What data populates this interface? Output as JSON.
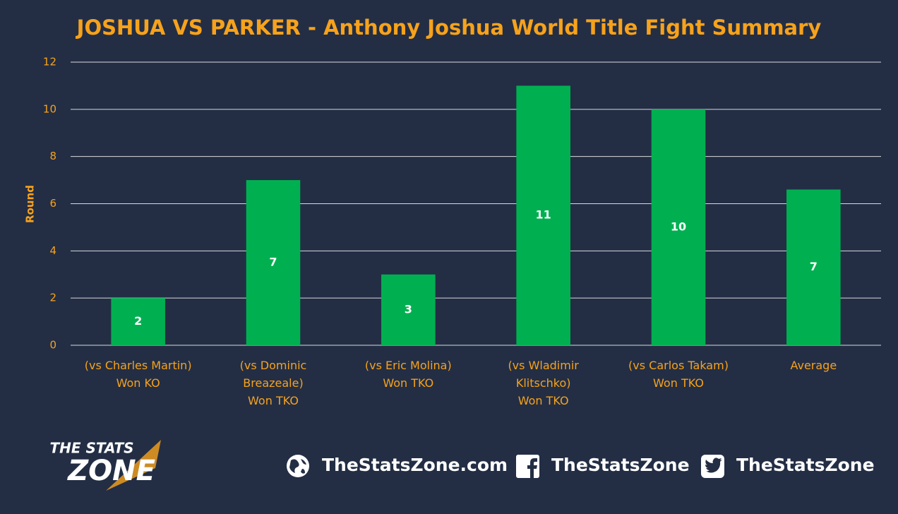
{
  "chart_data": {
    "type": "bar",
    "title": "JOSHUA VS PARKER - Anthony Joshua World Title Fight Summary",
    "y_label": "Round",
    "categories": [
      "(vs Charles Martin)\nWon KO",
      "(vs Dominic\nBreazeale)\nWon TKO",
      "(vs Eric Molina)\nWon TKO",
      "(vs Wladimir\nKlitschko)\nWon TKO",
      "(vs Carlos Takam)\nWon TKO",
      "Average"
    ],
    "values": [
      2,
      7,
      3,
      11,
      10,
      6.6
    ],
    "value_labels": [
      "2",
      "7",
      "3",
      "11",
      "10",
      "7"
    ],
    "color": "#00b050",
    "ylim": [
      0,
      12
    ],
    "yticks": [
      0,
      2,
      4,
      6,
      8,
      10,
      12
    ],
    "grid": true
  },
  "footer": {
    "logo_top": "THE STATS",
    "logo_bottom": "ZONE",
    "website": "TheStatsZone.com",
    "facebook": "TheStatsZone",
    "twitter": "TheStatsZone"
  }
}
